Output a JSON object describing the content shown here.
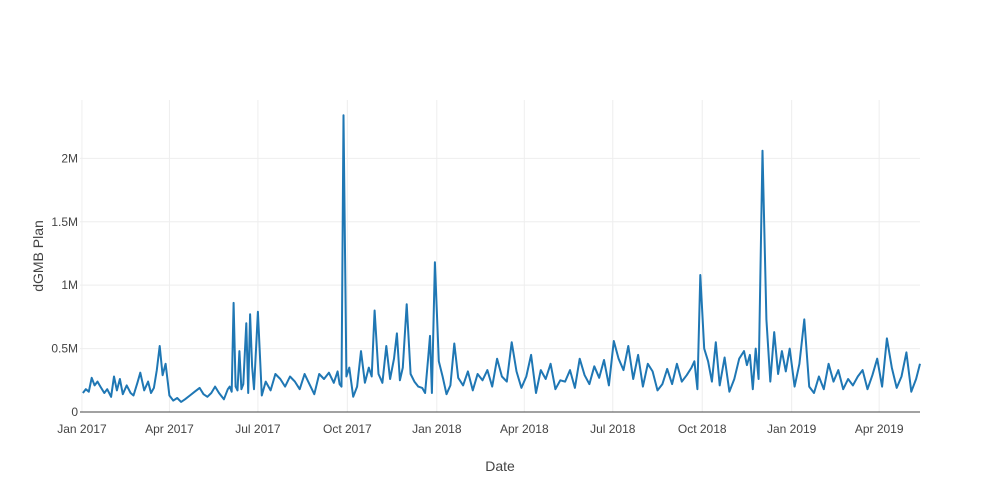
{
  "chart_data": {
    "type": "line",
    "title": "",
    "xlabel": "Date",
    "ylabel": "dGMB Plan",
    "xlim": [
      "2016-12-30",
      "2019-05-13"
    ],
    "ylim": [
      0,
      2460000
    ],
    "grid": true,
    "legend": "none",
    "colors": {
      "series": "#1f77b4",
      "grid": "#eeeeee",
      "zeroline": "#444444",
      "text": "#444444"
    },
    "x_ticks": [
      {
        "value": "2017-01-01",
        "label": "Jan 2017"
      },
      {
        "value": "2017-04-01",
        "label": "Apr 2017"
      },
      {
        "value": "2017-07-01",
        "label": "Jul 2017"
      },
      {
        "value": "2017-10-01",
        "label": "Oct 2017"
      },
      {
        "value": "2018-01-01",
        "label": "Jan 2018"
      },
      {
        "value": "2018-04-01",
        "label": "Apr 2018"
      },
      {
        "value": "2018-07-01",
        "label": "Jul 2018"
      },
      {
        "value": "2018-10-01",
        "label": "Oct 2018"
      },
      {
        "value": "2019-01-01",
        "label": "Jan 2019"
      },
      {
        "value": "2019-04-01",
        "label": "Apr 2019"
      }
    ],
    "y_ticks": [
      {
        "value": 0,
        "label": "0"
      },
      {
        "value": 500000,
        "label": "0.5M"
      },
      {
        "value": 1000000,
        "label": "1M"
      },
      {
        "value": 1500000,
        "label": "1.5M"
      },
      {
        "value": 2000000,
        "label": "2M"
      }
    ],
    "series": [
      {
        "x": [
          "2017-01-02",
          "2017-01-05",
          "2017-01-08",
          "2017-01-11",
          "2017-01-14",
          "2017-01-17",
          "2017-01-20",
          "2017-01-24",
          "2017-01-27",
          "2017-01-31",
          "2017-02-03",
          "2017-02-06",
          "2017-02-09",
          "2017-02-12",
          "2017-02-16",
          "2017-02-20",
          "2017-02-23",
          "2017-02-27",
          "2017-03-02",
          "2017-03-06",
          "2017-03-10",
          "2017-03-13",
          "2017-03-16",
          "2017-03-19",
          "2017-03-22",
          "2017-03-25",
          "2017-03-28",
          "2017-04-01",
          "2017-04-05",
          "2017-04-09",
          "2017-04-13",
          "2017-04-17",
          "2017-04-22",
          "2017-04-27",
          "2017-05-02",
          "2017-05-06",
          "2017-05-10",
          "2017-05-14",
          "2017-05-18",
          "2017-05-22",
          "2017-05-27",
          "2017-05-31",
          "2017-06-02",
          "2017-06-04",
          "2017-06-06",
          "2017-06-08",
          "2017-06-10",
          "2017-06-12",
          "2017-06-14",
          "2017-06-16",
          "2017-06-19",
          "2017-06-21",
          "2017-06-23",
          "2017-06-25",
          "2017-06-27",
          "2017-07-01",
          "2017-07-05",
          "2017-07-09",
          "2017-07-14",
          "2017-07-19",
          "2017-07-24",
          "2017-07-29",
          "2017-08-03",
          "2017-08-08",
          "2017-08-13",
          "2017-08-18",
          "2017-08-23",
          "2017-08-28",
          "2017-09-02",
          "2017-09-07",
          "2017-09-12",
          "2017-09-17",
          "2017-09-21",
          "2017-09-23",
          "2017-09-25",
          "2017-09-27",
          "2017-09-30",
          "2017-10-03",
          "2017-10-07",
          "2017-10-11",
          "2017-10-15",
          "2017-10-19",
          "2017-10-23",
          "2017-10-26",
          "2017-10-29",
          "2017-11-02",
          "2017-11-06",
          "2017-11-10",
          "2017-11-14",
          "2017-11-18",
          "2017-11-21",
          "2017-11-24",
          "2017-11-27",
          "2017-12-01",
          "2017-12-05",
          "2017-12-09",
          "2017-12-13",
          "2017-12-17",
          "2017-12-20",
          "2017-12-23",
          "2017-12-25",
          "2017-12-27",
          "2017-12-30",
          "2018-01-03",
          "2018-01-07",
          "2018-01-11",
          "2018-01-15",
          "2018-01-19",
          "2018-01-23",
          "2018-01-28",
          "2018-02-02",
          "2018-02-07",
          "2018-02-12",
          "2018-02-17",
          "2018-02-22",
          "2018-02-27",
          "2018-03-04",
          "2018-03-09",
          "2018-03-14",
          "2018-03-19",
          "2018-03-24",
          "2018-03-29",
          "2018-04-03",
          "2018-04-08",
          "2018-04-13",
          "2018-04-18",
          "2018-04-23",
          "2018-04-28",
          "2018-05-03",
          "2018-05-08",
          "2018-05-13",
          "2018-05-18",
          "2018-05-23",
          "2018-05-28",
          "2018-06-02",
          "2018-06-07",
          "2018-06-12",
          "2018-06-17",
          "2018-06-22",
          "2018-06-27",
          "2018-07-02",
          "2018-07-07",
          "2018-07-12",
          "2018-07-17",
          "2018-07-22",
          "2018-07-27",
          "2018-08-01",
          "2018-08-06",
          "2018-08-11",
          "2018-08-16",
          "2018-08-21",
          "2018-08-26",
          "2018-08-31",
          "2018-09-05",
          "2018-09-10",
          "2018-09-15",
          "2018-09-20",
          "2018-09-23",
          "2018-09-26",
          "2018-09-29",
          "2018-10-03",
          "2018-10-07",
          "2018-10-11",
          "2018-10-15",
          "2018-10-19",
          "2018-10-24",
          "2018-10-29",
          "2018-11-03",
          "2018-11-08",
          "2018-11-13",
          "2018-11-16",
          "2018-11-19",
          "2018-11-22",
          "2018-11-25",
          "2018-11-28",
          "2018-12-02",
          "2018-12-06",
          "2018-12-10",
          "2018-12-14",
          "2018-12-18",
          "2018-12-22",
          "2018-12-26",
          "2018-12-30",
          "2019-01-04",
          "2019-01-09",
          "2019-01-14",
          "2019-01-19",
          "2019-01-24",
          "2019-01-29",
          "2019-02-03",
          "2019-02-08",
          "2019-02-13",
          "2019-02-18",
          "2019-02-23",
          "2019-02-28",
          "2019-03-05",
          "2019-03-10",
          "2019-03-15",
          "2019-03-20",
          "2019-03-25",
          "2019-03-30",
          "2019-04-04",
          "2019-04-09",
          "2019-04-14",
          "2019-04-19",
          "2019-04-24",
          "2019-04-29",
          "2019-05-04",
          "2019-05-09",
          "2019-05-13"
        ],
        "y": [
          150000,
          180000,
          160000,
          270000,
          210000,
          240000,
          200000,
          150000,
          180000,
          120000,
          280000,
          170000,
          260000,
          140000,
          210000,
          150000,
          130000,
          230000,
          310000,
          170000,
          240000,
          150000,
          190000,
          330000,
          520000,
          290000,
          380000,
          130000,
          90000,
          110000,
          80000,
          100000,
          130000,
          160000,
          190000,
          140000,
          120000,
          150000,
          200000,
          150000,
          100000,
          180000,
          200000,
          160000,
          860000,
          200000,
          170000,
          480000,
          180000,
          220000,
          700000,
          150000,
          770000,
          360000,
          180000,
          790000,
          130000,
          240000,
          170000,
          300000,
          260000,
          200000,
          280000,
          240000,
          180000,
          300000,
          220000,
          140000,
          300000,
          260000,
          310000,
          230000,
          320000,
          220000,
          200000,
          2340000,
          280000,
          350000,
          120000,
          200000,
          480000,
          230000,
          350000,
          280000,
          800000,
          300000,
          230000,
          520000,
          260000,
          420000,
          620000,
          250000,
          350000,
          850000,
          300000,
          240000,
          200000,
          190000,
          150000,
          420000,
          600000,
          150000,
          1180000,
          400000,
          280000,
          140000,
          210000,
          540000,
          270000,
          210000,
          320000,
          170000,
          300000,
          250000,
          330000,
          200000,
          420000,
          280000,
          240000,
          550000,
          320000,
          190000,
          280000,
          450000,
          150000,
          330000,
          260000,
          380000,
          180000,
          250000,
          240000,
          330000,
          190000,
          420000,
          290000,
          220000,
          360000,
          270000,
          410000,
          210000,
          560000,
          420000,
          330000,
          520000,
          260000,
          450000,
          200000,
          380000,
          320000,
          170000,
          220000,
          340000,
          220000,
          380000,
          240000,
          290000,
          350000,
          400000,
          180000,
          1080000,
          500000,
          400000,
          240000,
          550000,
          210000,
          430000,
          160000,
          260000,
          420000,
          480000,
          370000,
          450000,
          180000,
          500000,
          260000,
          2060000,
          730000,
          240000,
          630000,
          300000,
          480000,
          320000,
          500000,
          200000,
          380000,
          730000,
          200000,
          150000,
          280000,
          180000,
          380000,
          240000,
          330000,
          180000,
          260000,
          210000,
          280000,
          330000,
          180000,
          290000,
          420000,
          200000,
          580000,
          350000,
          190000,
          280000,
          470000,
          160000,
          260000,
          380000
        ]
      }
    ]
  }
}
